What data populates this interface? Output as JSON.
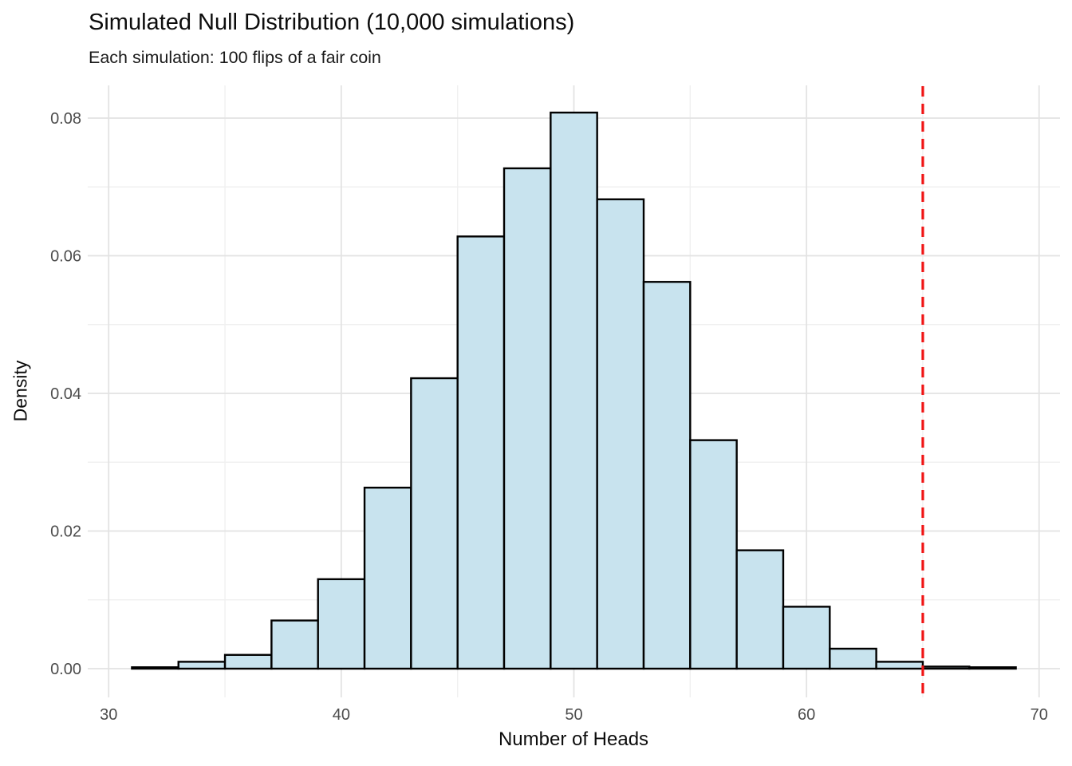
{
  "chart_data": {
    "type": "bar",
    "variant": "histogram",
    "title": "Simulated Null Distribution (10,000 simulations)",
    "subtitle": "Each simulation: 100 flips of a fair coin",
    "xlabel": "Number of Heads",
    "ylabel": "Density",
    "xlim": [
      29.1,
      70.9
    ],
    "ylim": [
      0,
      0.0845
    ],
    "grid": true,
    "legend_position": "none",
    "bin_start": 31,
    "binwidth": 2,
    "densities": [
      0.0002,
      0.001,
      0.002,
      0.007,
      0.013,
      0.0263,
      0.0422,
      0.0628,
      0.0727,
      0.0808,
      0.0682,
      0.0562,
      0.0332,
      0.0172,
      0.009,
      0.0029,
      0.001,
      0.0003,
      0.0002
    ],
    "x_ticks": {
      "values": [
        30,
        40,
        50,
        60,
        70
      ],
      "labels": [
        "30",
        "40",
        "50",
        "60",
        "70"
      ]
    },
    "y_ticks": {
      "values": [
        0,
        0.02,
        0.04,
        0.06,
        0.08
      ],
      "labels": [
        "0.00",
        "0.02",
        "0.04",
        "0.06",
        "0.08"
      ]
    },
    "x_minor_ticks": [
      35,
      45,
      55,
      65
    ],
    "y_minor_ticks": [
      0.01,
      0.03,
      0.05,
      0.07
    ],
    "reference_line": {
      "x": 65,
      "orientation": "vertical",
      "style": "dashed"
    }
  },
  "colors": {
    "background": "#ffffff",
    "bar_fill": "#c8e3ee",
    "bar_stroke": "#000000",
    "grid_major": "#e3e3e3",
    "grid_minor": "#f0f0f0",
    "reference_line": "#f01414",
    "title_text": "#0d0d0d",
    "tick_text": "#4d4d4d"
  }
}
